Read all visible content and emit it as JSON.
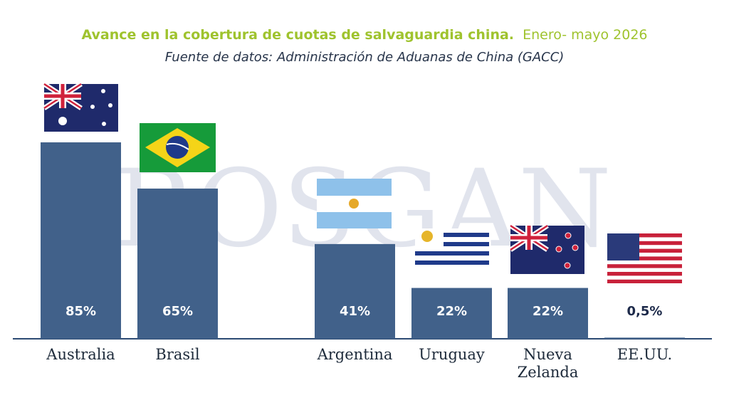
{
  "chart_data": {
    "type": "bar",
    "title": "Avance en la cobertura de cuotas de salvaguardia china.",
    "title_period": "Enero- mayo 2026",
    "subtitle": "Fuente de datos: Administración de Aduanas de China (GACC)",
    "watermark": "ROSGAN",
    "categories": [
      "Australia",
      "Brasil",
      "Argentina",
      "Uruguay",
      "Nueva Zelanda",
      "EE.UU."
    ],
    "values": [
      85,
      65,
      41,
      22,
      22,
      0.5
    ],
    "value_labels": [
      "85%",
      "65%",
      "41%",
      "22%",
      "22%",
      "0,5%"
    ],
    "color": "#41618a"
  }
}
